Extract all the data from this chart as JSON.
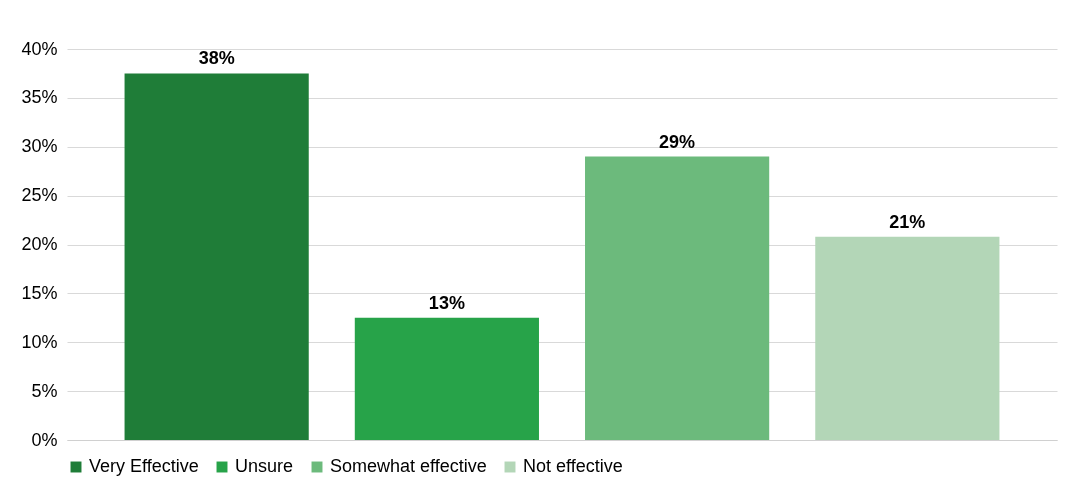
{
  "chart_data": {
    "type": "bar",
    "categories": [
      null
    ],
    "series": [
      {
        "name": "Very Effective",
        "color": "#1f7d38",
        "values": [
          37.5
        ],
        "value_labels": [
          "38%"
        ]
      },
      {
        "name": "Unsure",
        "color": "#27a349",
        "values": [
          12.5
        ],
        "value_labels": [
          "13%"
        ]
      },
      {
        "name": "Somewhat effective",
        "color": "#6cba7c",
        "values": [
          29
        ],
        "value_labels": [
          "29%"
        ]
      },
      {
        "name": "Not effective",
        "color": "#b3d6b7",
        "values": [
          20.8
        ],
        "value_labels": [
          "21%"
        ]
      }
    ],
    "ylim": [
      0,
      40
    ],
    "yticks": [
      {
        "value": 0,
        "label": "0%"
      },
      {
        "value": 5,
        "label": "5%"
      },
      {
        "value": 10,
        "label": "10%"
      },
      {
        "value": 15,
        "label": "15%"
      },
      {
        "value": 20,
        "label": "20%"
      },
      {
        "value": 25,
        "label": "25%"
      },
      {
        "value": 30,
        "label": "30%"
      },
      {
        "value": 35,
        "label": "35%"
      },
      {
        "value": 40,
        "label": "40%"
      }
    ],
    "grid": "y",
    "legend": "bottom",
    "tick_labels": "y"
  }
}
